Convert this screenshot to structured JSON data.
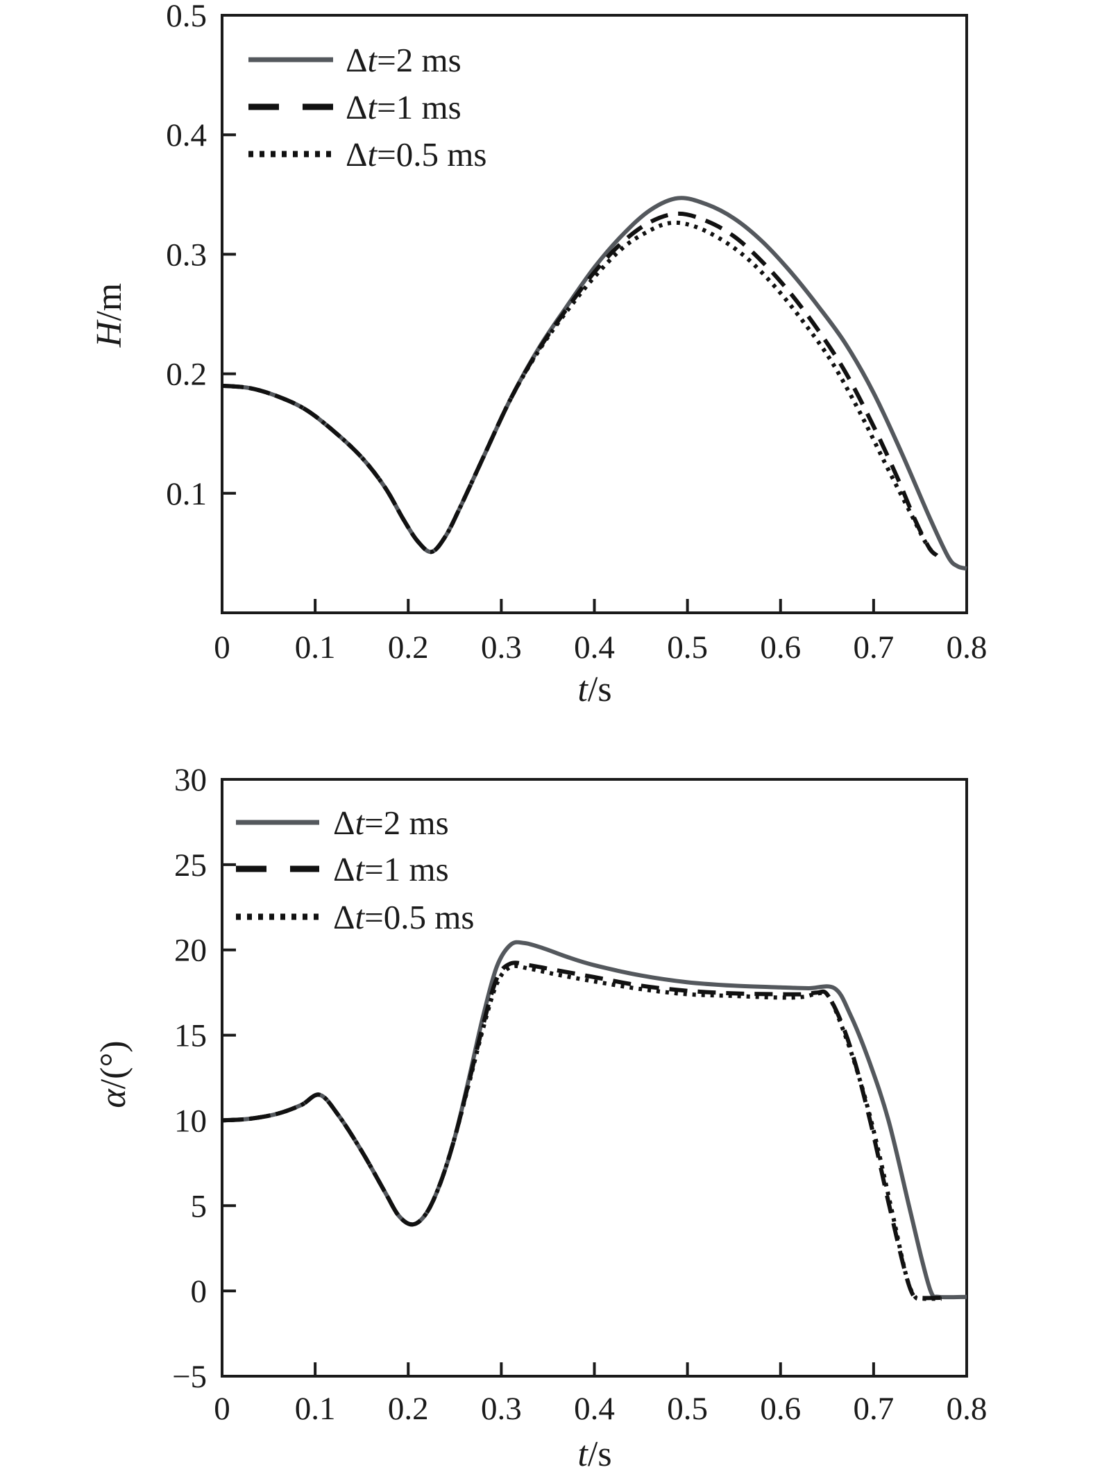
{
  "figure": {
    "background": "#ffffff",
    "axis_color": "#1a1a1a",
    "series_gray_color": "#54585d",
    "series_black_color": "#111111"
  },
  "chart_data": [
    {
      "type": "line",
      "title": "",
      "xlabel": "t/s",
      "ylabel": "H/m",
      "xlim": [
        0,
        0.8
      ],
      "ylim": [
        0,
        0.5
      ],
      "grid": false,
      "legend_position": "top-left-inside",
      "xtick_values": [
        0,
        0.1,
        0.2,
        0.3,
        0.4,
        0.5,
        0.6,
        0.7,
        0.8
      ],
      "xtick_labels": [
        "0",
        "0.1",
        "0.2",
        "0.3",
        "0.4",
        "0.5",
        "0.6",
        "0.7",
        "0.8"
      ],
      "ytick_values": [
        0.1,
        0.2,
        0.3,
        0.4,
        0.5
      ],
      "ytick_labels": [
        "0.1",
        "0.2",
        "0.3",
        "0.4",
        "0.5"
      ],
      "series": [
        {
          "name": "Δt=2 ms",
          "line_style": "solid",
          "color": "#54585d",
          "points": [
            [
              0,
              0.19
            ],
            [
              0.03,
              0.188
            ],
            [
              0.06,
              0.181
            ],
            [
              0.09,
              0.17
            ],
            [
              0.12,
              0.152
            ],
            [
              0.15,
              0.13
            ],
            [
              0.175,
              0.105
            ],
            [
              0.195,
              0.078
            ],
            [
              0.21,
              0.06
            ],
            [
              0.225,
              0.051
            ],
            [
              0.24,
              0.064
            ],
            [
              0.255,
              0.087
            ],
            [
              0.28,
              0.129
            ],
            [
              0.31,
              0.179
            ],
            [
              0.34,
              0.221
            ],
            [
              0.37,
              0.256
            ],
            [
              0.4,
              0.289
            ],
            [
              0.43,
              0.316
            ],
            [
              0.46,
              0.337
            ],
            [
              0.49,
              0.347
            ],
            [
              0.52,
              0.342
            ],
            [
              0.55,
              0.33
            ],
            [
              0.58,
              0.311
            ],
            [
              0.61,
              0.286
            ],
            [
              0.64,
              0.257
            ],
            [
              0.67,
              0.225
            ],
            [
              0.7,
              0.184
            ],
            [
              0.73,
              0.134
            ],
            [
              0.76,
              0.08
            ],
            [
              0.78,
              0.047
            ],
            [
              0.79,
              0.039
            ],
            [
              0.8,
              0.037
            ]
          ]
        },
        {
          "name": "Δt=1 ms",
          "line_style": "dashed",
          "color": "#111111",
          "points": [
            [
              0,
              0.19
            ],
            [
              0.03,
              0.188
            ],
            [
              0.06,
              0.181
            ],
            [
              0.09,
              0.17
            ],
            [
              0.12,
              0.152
            ],
            [
              0.15,
              0.13
            ],
            [
              0.175,
              0.105
            ],
            [
              0.195,
              0.078
            ],
            [
              0.21,
              0.06
            ],
            [
              0.225,
              0.051
            ],
            [
              0.24,
              0.064
            ],
            [
              0.255,
              0.087
            ],
            [
              0.28,
              0.129
            ],
            [
              0.31,
              0.179
            ],
            [
              0.34,
              0.22
            ],
            [
              0.37,
              0.254
            ],
            [
              0.4,
              0.285
            ],
            [
              0.43,
              0.31
            ],
            [
              0.46,
              0.327
            ],
            [
              0.49,
              0.334
            ],
            [
              0.52,
              0.328
            ],
            [
              0.55,
              0.315
            ],
            [
              0.58,
              0.294
            ],
            [
              0.61,
              0.268
            ],
            [
              0.64,
              0.237
            ],
            [
              0.67,
              0.201
            ],
            [
              0.7,
              0.156
            ],
            [
              0.725,
              0.114
            ],
            [
              0.745,
              0.077
            ],
            [
              0.76,
              0.054
            ],
            [
              0.768,
              0.048
            ]
          ]
        },
        {
          "name": "Δt=0.5 ms",
          "line_style": "dotted",
          "color": "#111111",
          "points": [
            [
              0,
              0.19
            ],
            [
              0.03,
              0.188
            ],
            [
              0.06,
              0.181
            ],
            [
              0.09,
              0.17
            ],
            [
              0.12,
              0.152
            ],
            [
              0.15,
              0.13
            ],
            [
              0.175,
              0.105
            ],
            [
              0.195,
              0.078
            ],
            [
              0.21,
              0.06
            ],
            [
              0.225,
              0.051
            ],
            [
              0.24,
              0.064
            ],
            [
              0.255,
              0.087
            ],
            [
              0.28,
              0.129
            ],
            [
              0.31,
              0.179
            ],
            [
              0.34,
              0.219
            ],
            [
              0.37,
              0.252
            ],
            [
              0.4,
              0.281
            ],
            [
              0.43,
              0.305
            ],
            [
              0.455,
              0.318
            ],
            [
              0.48,
              0.326
            ],
            [
              0.505,
              0.324
            ],
            [
              0.535,
              0.313
            ],
            [
              0.565,
              0.296
            ],
            [
              0.595,
              0.272
            ],
            [
              0.625,
              0.243
            ],
            [
              0.655,
              0.21
            ],
            [
              0.685,
              0.168
            ],
            [
              0.715,
              0.121
            ],
            [
              0.74,
              0.083
            ],
            [
              0.755,
              0.06
            ],
            [
              0.763,
              0.051
            ]
          ]
        }
      ]
    },
    {
      "type": "line",
      "title": "",
      "xlabel": "t/s",
      "ylabel": "α/(°)",
      "xlim": [
        0,
        0.8
      ],
      "ylim": [
        -5,
        30
      ],
      "grid": false,
      "legend_position": "top-left-inside",
      "xtick_values": [
        0,
        0.1,
        0.2,
        0.3,
        0.4,
        0.5,
        0.6,
        0.7,
        0.8
      ],
      "xtick_labels": [
        "0",
        "0.1",
        "0.2",
        "0.3",
        "0.4",
        "0.5",
        "0.6",
        "0.7",
        "0.8"
      ],
      "ytick_values": [
        -5,
        0,
        5,
        10,
        15,
        20,
        25,
        30
      ],
      "ytick_labels": [
        "−5",
        "0",
        "5",
        "10",
        "15",
        "20",
        "25",
        "30"
      ],
      "series": [
        {
          "name": "Δt=2 ms",
          "line_style": "solid",
          "color": "#54585d",
          "points": [
            [
              0,
              10.0
            ],
            [
              0.03,
              10.1
            ],
            [
              0.06,
              10.4
            ],
            [
              0.085,
              10.9
            ],
            [
              0.105,
              11.5
            ],
            [
              0.125,
              10.3
            ],
            [
              0.15,
              8.2
            ],
            [
              0.175,
              5.8
            ],
            [
              0.19,
              4.4
            ],
            [
              0.205,
              3.9
            ],
            [
              0.22,
              4.6
            ],
            [
              0.235,
              6.4
            ],
            [
              0.25,
              9.0
            ],
            [
              0.265,
              12.4
            ],
            [
              0.28,
              16.0
            ],
            [
              0.295,
              19.0
            ],
            [
              0.31,
              20.3
            ],
            [
              0.325,
              20.4
            ],
            [
              0.345,
              20.1
            ],
            [
              0.37,
              19.6
            ],
            [
              0.4,
              19.1
            ],
            [
              0.45,
              18.5
            ],
            [
              0.5,
              18.1
            ],
            [
              0.55,
              17.9
            ],
            [
              0.6,
              17.8
            ],
            [
              0.63,
              17.75
            ],
            [
              0.658,
              17.75
            ],
            [
              0.675,
              16.2
            ],
            [
              0.695,
              13.5
            ],
            [
              0.716,
              10.0
            ],
            [
              0.738,
              5.0
            ],
            [
              0.752,
              1.8
            ],
            [
              0.762,
              -0.1
            ],
            [
              0.77,
              -0.35
            ],
            [
              0.8,
              -0.35
            ]
          ]
        },
        {
          "name": "Δt=1 ms",
          "line_style": "dashed",
          "color": "#111111",
          "points": [
            [
              0,
              10.0
            ],
            [
              0.03,
              10.1
            ],
            [
              0.06,
              10.4
            ],
            [
              0.085,
              10.9
            ],
            [
              0.105,
              11.5
            ],
            [
              0.125,
              10.3
            ],
            [
              0.15,
              8.2
            ],
            [
              0.175,
              5.8
            ],
            [
              0.19,
              4.4
            ],
            [
              0.205,
              3.9
            ],
            [
              0.22,
              4.6
            ],
            [
              0.235,
              6.4
            ],
            [
              0.25,
              9.0
            ],
            [
              0.265,
              12.2
            ],
            [
              0.28,
              15.5
            ],
            [
              0.295,
              18.3
            ],
            [
              0.31,
              19.2
            ],
            [
              0.33,
              19.1
            ],
            [
              0.36,
              18.8
            ],
            [
              0.4,
              18.4
            ],
            [
              0.45,
              17.9
            ],
            [
              0.5,
              17.6
            ],
            [
              0.55,
              17.45
            ],
            [
              0.6,
              17.4
            ],
            [
              0.625,
              17.4
            ],
            [
              0.64,
              17.5
            ],
            [
              0.65,
              17.4
            ],
            [
              0.665,
              15.8
            ],
            [
              0.68,
              13.4
            ],
            [
              0.697,
              9.8
            ],
            [
              0.716,
              5.2
            ],
            [
              0.733,
              1.3
            ],
            [
              0.742,
              -0.2
            ],
            [
              0.75,
              -0.4
            ],
            [
              0.772,
              -0.4
            ]
          ]
        },
        {
          "name": "Δt=0.5 ms",
          "line_style": "dotted",
          "color": "#111111",
          "points": [
            [
              0,
              10.0
            ],
            [
              0.03,
              10.1
            ],
            [
              0.06,
              10.4
            ],
            [
              0.085,
              10.9
            ],
            [
              0.105,
              11.5
            ],
            [
              0.125,
              10.3
            ],
            [
              0.15,
              8.2
            ],
            [
              0.175,
              5.8
            ],
            [
              0.19,
              4.4
            ],
            [
              0.205,
              3.9
            ],
            [
              0.22,
              4.6
            ],
            [
              0.235,
              6.4
            ],
            [
              0.25,
              9.0
            ],
            [
              0.265,
              12.1
            ],
            [
              0.28,
              15.3
            ],
            [
              0.295,
              18.0
            ],
            [
              0.31,
              19.0
            ],
            [
              0.33,
              18.9
            ],
            [
              0.36,
              18.55
            ],
            [
              0.4,
              18.15
            ],
            [
              0.45,
              17.7
            ],
            [
              0.5,
              17.4
            ],
            [
              0.55,
              17.3
            ],
            [
              0.6,
              17.2
            ],
            [
              0.625,
              17.25
            ],
            [
              0.64,
              17.45
            ],
            [
              0.652,
              17.25
            ],
            [
              0.668,
              15.2
            ],
            [
              0.684,
              12.6
            ],
            [
              0.7,
              9.4
            ],
            [
              0.72,
              4.6
            ],
            [
              0.735,
              0.9
            ],
            [
              0.744,
              -0.3
            ],
            [
              0.752,
              -0.45
            ],
            [
              0.773,
              -0.45
            ]
          ]
        }
      ]
    }
  ]
}
